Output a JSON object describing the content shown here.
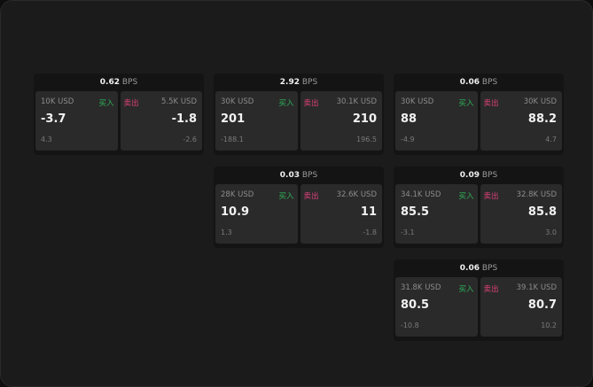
{
  "unit": "BPS",
  "buy_label": "买入",
  "sell_label": "卖出",
  "colors": {
    "buy": "#2fb45a",
    "sell": "#e0417a"
  },
  "cards": [
    {
      "spread": "0.62",
      "buy": {
        "qty": "10K USD",
        "price": "-3.7",
        "change": "4.3"
      },
      "sell": {
        "qty": "5.5K USD",
        "price": "-1.8",
        "change": "-2.6"
      }
    },
    {
      "spread": "2.92",
      "buy": {
        "qty": "30K USD",
        "price": "201",
        "change": "-188.1"
      },
      "sell": {
        "qty": "30.1K USD",
        "price": "210",
        "change": "196.5"
      }
    },
    {
      "spread": "0.06",
      "buy": {
        "qty": "30K USD",
        "price": "88",
        "change": "-4.9"
      },
      "sell": {
        "qty": "30K USD",
        "price": "88.2",
        "change": "4.7"
      }
    },
    {
      "spread": "0.03",
      "buy": {
        "qty": "28K USD",
        "price": "10.9",
        "change": "1.3"
      },
      "sell": {
        "qty": "32.6K USD",
        "price": "11",
        "change": "-1.8"
      }
    },
    {
      "spread": "0.09",
      "buy": {
        "qty": "34.1K USD",
        "price": "85.5",
        "change": "-3.1"
      },
      "sell": {
        "qty": "32.8K USD",
        "price": "85.8",
        "change": "3.0"
      }
    },
    {
      "spread": "0.06",
      "buy": {
        "qty": "31.8K USD",
        "price": "80.5",
        "change": "-10.8"
      },
      "sell": {
        "qty": "39.1K USD",
        "price": "80.7",
        "change": "10.2"
      }
    }
  ]
}
